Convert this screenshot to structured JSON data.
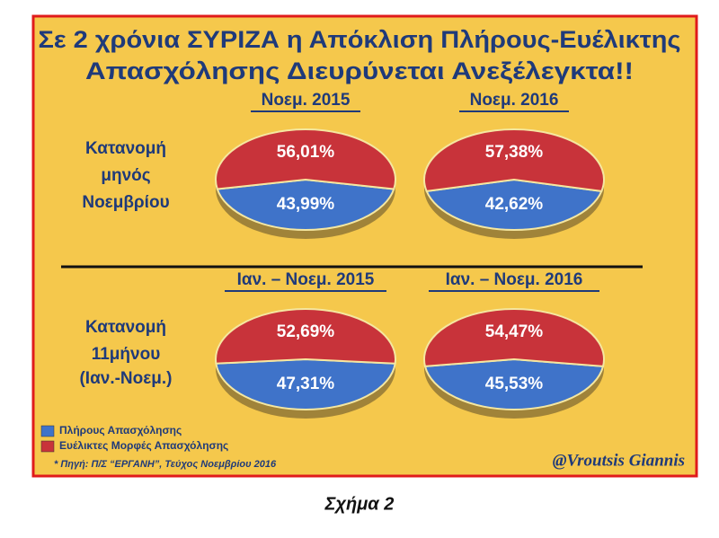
{
  "title": [
    "Σε 2 χρόνια ΣΥΡΙΖΑ η Απόκλιση Πλήρους-Ευέλικτης",
    "Απασχόλησης Διευρύνεται Ανεξέλεγκτα!!"
  ],
  "row_labels": [
    [
      "Κατανομή",
      "μηνός",
      "Νοεμβρίου"
    ],
    [
      "Κατανομή",
      "11μήνου",
      "(Ιαν.-Νοεμ.)"
    ]
  ],
  "legend": [
    {
      "name": "Πλήρους Απασχόλησης",
      "color": "#3f73c9"
    },
    {
      "name": "Ευέλικτες Μορφές Απασχόλησης",
      "color": "#c8333a"
    }
  ],
  "source": "* Πηγή: Π/Σ “ΕΡΓΑΝΗ”, Τεύχος Νοεμβρίου 2016",
  "watermark": "@Vroutsis Giannis",
  "caption": "Σχήμα 2",
  "chart_data": [
    {
      "type": "pie",
      "title": "Νοεμ. 2015",
      "values": [
        43.99,
        56.01
      ],
      "value_labels": [
        "43,99%",
        "56,01%"
      ]
    },
    {
      "type": "pie",
      "title": "Νοεμ. 2016",
      "values": [
        42.62,
        57.38
      ],
      "value_labels": [
        "42,62%",
        "57,38%"
      ]
    },
    {
      "type": "pie",
      "title": "Ιαν. – Νοεμ. 2015",
      "values": [
        47.31,
        52.69
      ],
      "value_labels": [
        "47,31%",
        "52,69%"
      ]
    },
    {
      "type": "pie",
      "title": "Ιαν. – Νοεμ. 2016",
      "values": [
        45.53,
        54.47
      ],
      "value_labels": [
        "45,53%",
        "54,47%"
      ]
    }
  ]
}
